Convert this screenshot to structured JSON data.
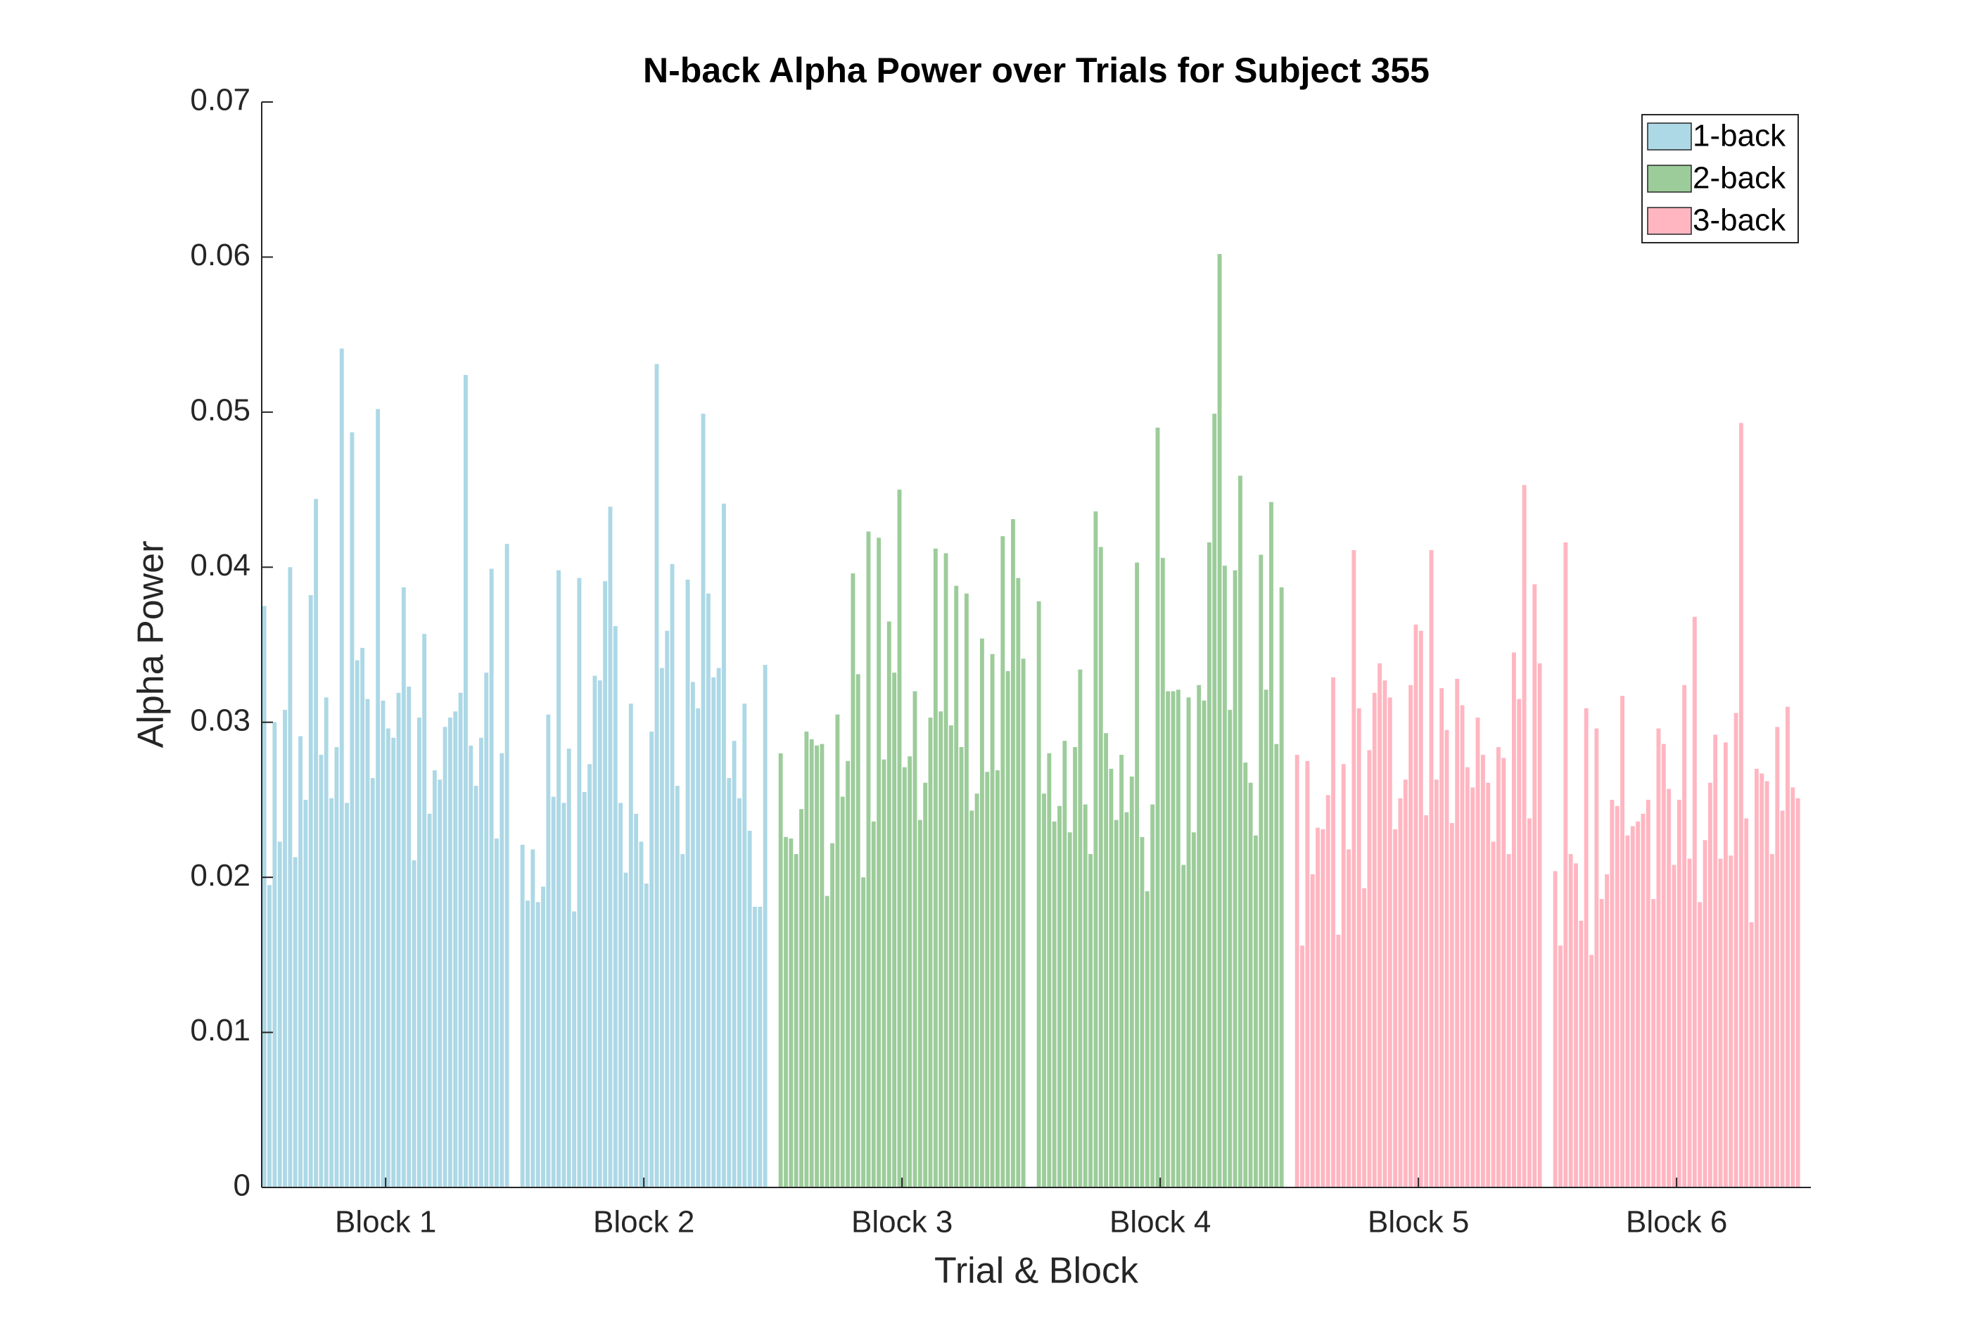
{
  "chart_data": {
    "type": "bar",
    "title": "N-back Alpha Power over Trials for Subject 355",
    "xlabel": "Trial & Block",
    "ylabel": "Alpha Power",
    "categories": [
      "Block 1",
      "Block 2",
      "Block 3",
      "Block 4",
      "Block 5",
      "Block 6"
    ],
    "ylim": [
      0,
      0.07
    ],
    "yticks": [
      0,
      0.01,
      0.02,
      0.03,
      0.04,
      0.05,
      0.06,
      0.07
    ],
    "legend": "upper right",
    "series": [
      {
        "name": "1-back",
        "color": "#add8e6",
        "values": [
          [
            0.0375,
            0.0195,
            0.03,
            0.0223,
            0.0308,
            0.04,
            0.0213,
            0.0291,
            0.025,
            0.0382,
            0.0444,
            0.0279,
            0.0316,
            0.0251,
            0.0284,
            0.0541,
            0.0248,
            0.0487,
            0.034,
            0.0348,
            0.0315,
            0.0264,
            0.0502,
            0.0314,
            0.0296,
            0.029,
            0.0319,
            0.0387,
            0.0323,
            0.0211,
            0.0303,
            0.0357,
            0.0241,
            0.0269,
            0.0263,
            0.0297,
            0.0303,
            0.0307,
            0.0319,
            0.0524,
            0.0285,
            0.0259,
            0.029,
            0.0332,
            0.0399,
            0.0225,
            0.028,
            0.0415
          ],
          [
            0.0221,
            0.0185,
            0.0218,
            0.0184,
            0.0194,
            0.0305,
            0.0252,
            0.0398,
            0.0248,
            0.0283,
            0.0178,
            0.0393,
            0.0255,
            0.0273,
            0.033,
            0.0327,
            0.0391,
            0.0439,
            0.0362,
            0.0248,
            0.0203,
            0.0312,
            0.0241,
            0.0223,
            0.0196,
            0.0294,
            0.0531,
            0.0335,
            0.0359,
            0.0402,
            0.0259,
            0.0215,
            0.0392,
            0.0326,
            0.0309,
            0.0499,
            0.0383,
            0.0329,
            0.0335,
            0.0441,
            0.0264,
            0.0288,
            0.0251,
            0.0312,
            0.023,
            0.0181,
            0.0181,
            0.0337
          ]
        ]
      },
      {
        "name": "2-back",
        "color": "#9ccc9a",
        "values": [
          [
            0.028,
            0.0226,
            0.0225,
            0.0215,
            0.0244,
            0.0294,
            0.0289,
            0.0285,
            0.0286,
            0.0188,
            0.0222,
            0.0305,
            0.0252,
            0.0275,
            0.0396,
            0.0331,
            0.02,
            0.0423,
            0.0236,
            0.0419,
            0.0276,
            0.0365,
            0.0332,
            0.045,
            0.0271,
            0.0278,
            0.032,
            0.0237,
            0.0261,
            0.0303,
            0.0412,
            0.0307,
            0.0409,
            0.0298,
            0.0388,
            0.0284,
            0.0383,
            0.0243,
            0.0254,
            0.0354,
            0.0268,
            0.0344,
            0.0269,
            0.042,
            0.0333,
            0.0431,
            0.0393,
            0.0341
          ],
          [
            0.0378,
            0.0254,
            0.028,
            0.0236,
            0.0246,
            0.0288,
            0.0229,
            0.0284,
            0.0334,
            0.0247,
            0.0215,
            0.0436,
            0.0413,
            0.0293,
            0.027,
            0.0237,
            0.0279,
            0.0242,
            0.0265,
            0.0403,
            0.0226,
            0.0191,
            0.0247,
            0.049,
            0.0406,
            0.032,
            0.032,
            0.0321,
            0.0208,
            0.0316,
            0.0229,
            0.0324,
            0.0314,
            0.0416,
            0.0499,
            0.0602,
            0.0401,
            0.0308,
            0.0398,
            0.0459,
            0.0274,
            0.0261,
            0.0227,
            0.0408,
            0.0321,
            0.0442,
            0.0286,
            0.0387
          ]
        ]
      },
      {
        "name": "3-back",
        "color": "#ffb6c1",
        "values": [
          [
            0.0279,
            0.0156,
            0.0275,
            0.0202,
            0.0232,
            0.0231,
            0.0253,
            0.0329,
            0.0163,
            0.0273,
            0.0218,
            0.0411,
            0.0309,
            0.0193,
            0.0282,
            0.0319,
            0.0338,
            0.0327,
            0.0316,
            0.0231,
            0.0251,
            0.0263,
            0.0324,
            0.0363,
            0.0359,
            0.024,
            0.0411,
            0.0263,
            0.0322,
            0.0295,
            0.0235,
            0.0328,
            0.0311,
            0.0271,
            0.0258,
            0.0303,
            0.0279,
            0.0261,
            0.0223,
            0.0284,
            0.0277,
            0.0215,
            0.0345,
            0.0315,
            0.0453,
            0.0238,
            0.0389,
            0.0338
          ],
          [
            0.0204,
            0.0156,
            0.0416,
            0.0215,
            0.0209,
            0.0172,
            0.0309,
            0.015,
            0.0296,
            0.0186,
            0.0202,
            0.025,
            0.0246,
            0.0317,
            0.0227,
            0.0233,
            0.0236,
            0.0241,
            0.025,
            0.0186,
            0.0296,
            0.0286,
            0.0257,
            0.0208,
            0.025,
            0.0324,
            0.0212,
            0.0368,
            0.0184,
            0.0224,
            0.0261,
            0.0292,
            0.0212,
            0.0287,
            0.0214,
            0.0306,
            0.0493,
            0.0238,
            0.0171,
            0.027,
            0.0267,
            0.0262,
            0.0215,
            0.0297,
            0.0243,
            0.031,
            0.0258,
            0.0251
          ]
        ]
      }
    ]
  }
}
